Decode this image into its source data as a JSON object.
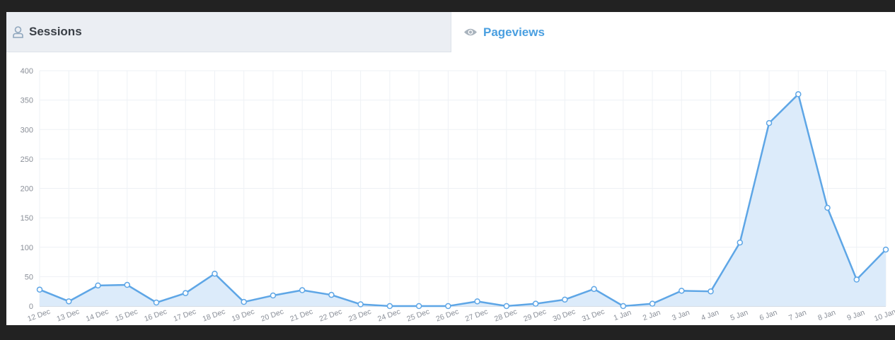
{
  "tabs": {
    "sessions": {
      "label": "Sessions",
      "icon": "user-icon"
    },
    "pageviews": {
      "label": "Pageviews",
      "icon": "eye-icon",
      "active": true
    }
  },
  "colors": {
    "line": "#5ea6e6",
    "area": "#dcebfa",
    "grid": "#eef1f5",
    "tick_text": "#8a8f98",
    "active_tab": "#4a9fe0"
  },
  "chart_data": {
    "type": "area",
    "x": [
      "12 Dec",
      "13 Dec",
      "14 Dec",
      "15 Dec",
      "16 Dec",
      "17 Dec",
      "18 Dec",
      "19 Dec",
      "20 Dec",
      "21 Dec",
      "22 Dec",
      "23 Dec",
      "24 Dec",
      "25 Dec",
      "26 Dec",
      "27 Dec",
      "28 Dec",
      "29 Dec",
      "30 Dec",
      "31 Dec",
      "1 Jan",
      "2 Jan",
      "3 Jan",
      "4 Jan",
      "5 Jan",
      "6 Jan",
      "7 Jan",
      "8 Jan",
      "9 Jan",
      "10 Jan"
    ],
    "series": [
      {
        "values": [
          28,
          8,
          35,
          36,
          6,
          22,
          55,
          7,
          18,
          27,
          19,
          3,
          0,
          0,
          0,
          8,
          0,
          4,
          11,
          29,
          0,
          4,
          26,
          25,
          108,
          311,
          360,
          167,
          45,
          96
        ]
      }
    ],
    "ylim": [
      0,
      400
    ],
    "yticks": [
      0,
      50,
      100,
      150,
      200,
      250,
      300,
      350,
      400
    ],
    "grid": true,
    "legend": "none"
  }
}
